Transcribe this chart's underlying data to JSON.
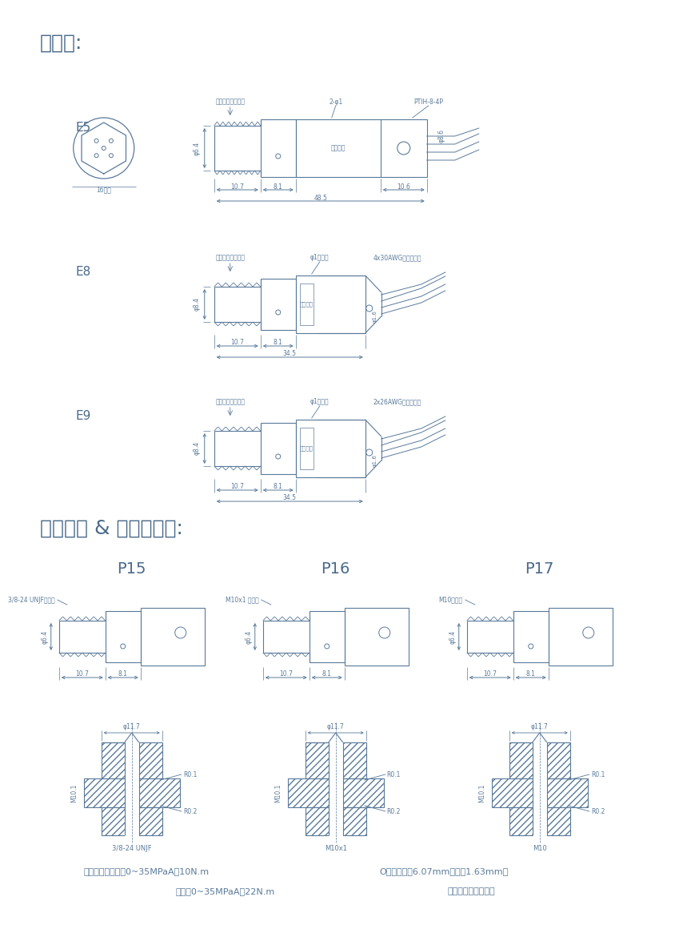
{
  "title1": "外形图:",
  "title2": "压力接头 & 推荐安装图:",
  "bg_color": "#ffffff",
  "line_color": "#5a7a9a",
  "text_color": "#5a7a9a",
  "title_color": "#4a6a8a",
  "footer_line1_left": "安装扭矩：量程＜0~35MPaA，10N.m",
  "footer_line1_right": "O型圈：内径6.07mm，线径1.63mm，",
  "footer_line2_left": "量程＞0~35MPaA，22N.m",
  "footer_line2_right": "材质与被测介质匹配",
  "e5_annot1": "参考压力接头图纸",
  "e5_annot2": "2-φ1",
  "e5_annot3": "PTIH-8-4P",
  "e5_label_area": "标签区域",
  "e5_dim1": "φ6.4",
  "e5_dim2": "10.7",
  "e5_dim3": "8.1",
  "e5_dim4": "10.6",
  "e5_dim5": "48.5",
  "e5_dim6": "φ8.6",
  "e8_annot1": "参考压力接头图纸",
  "e8_annot2": "φ1穿线孔",
  "e8_annot3": "4x30AWG线缆屏蔽线",
  "e8_label_area": "标签区域",
  "e8_dim1": "φ8.4",
  "e8_dim2": "10.7",
  "e8_dim3": "8.1",
  "e8_dim4": "34.5",
  "e9_annot1": "参考压力接头图纸",
  "e9_annot2": "φ1穿线孔",
  "e9_annot3": "2x26AWG线缆屏蔽线",
  "e9_label_area": "标签区域",
  "e9_dim1": "φ8.4",
  "e9_dim2": "10.7",
  "e9_dim3": "8.1",
  "e9_dim4": "34.5",
  "p15_label": "P15",
  "p16_label": "P16",
  "p17_label": "P17",
  "p15_thread": "3/8-24 UNJF外螺纹",
  "p16_thread": "M10x1 外螺纹",
  "p17_thread": "M10外螺纹",
  "p15_bot": "3/8-24 UNJF",
  "p16_bot": "M10x1",
  "p17_bot": "M10",
  "p_dim1": "φ6.4",
  "p_dim2": "10.7",
  "p_dim3": "8.1",
  "bot_dim1": "φ11.7",
  "bot_dim2": "R0.1",
  "bot_dim3": "R0.2",
  "bot_dim4": "M10.1",
  "hex16": "16六方",
  "phi_label": "φ1.6"
}
